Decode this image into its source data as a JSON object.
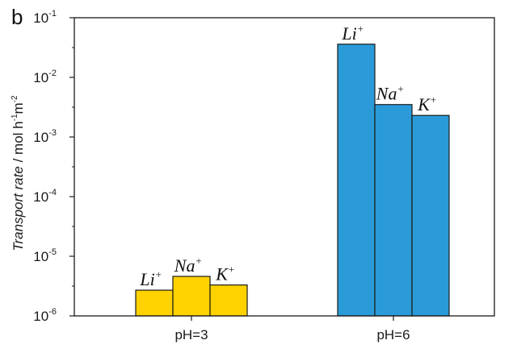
{
  "panel_label": "b",
  "chart_data": {
    "type": "bar",
    "y_scale": "log",
    "ylim": [
      1e-06,
      0.1
    ],
    "ylabel": {
      "italic": "Transport rate",
      "rest": " / mol h",
      "sup1": "-1",
      "mid": "m",
      "sup2": "-2"
    },
    "y_ticks": [
      {
        "value": 1e-06,
        "base": "10",
        "exp": "-6"
      },
      {
        "value": 1e-05,
        "base": "10",
        "exp": "-5"
      },
      {
        "value": 0.0001,
        "base": "10",
        "exp": "-4"
      },
      {
        "value": 0.001,
        "base": "10",
        "exp": "-3"
      },
      {
        "value": 0.01,
        "base": "10",
        "exp": "-2"
      },
      {
        "value": 0.1,
        "base": "10",
        "exp": "-1"
      }
    ],
    "groups": [
      {
        "label": "pH=3",
        "color": "#FFD200",
        "bars": [
          {
            "ion": "Li",
            "charge": "+",
            "value": 2.7e-06
          },
          {
            "ion": "Na",
            "charge": "+",
            "value": 4.6e-06
          },
          {
            "ion": "K",
            "charge": "+",
            "value": 3.3e-06
          }
        ]
      },
      {
        "label": "pH=6",
        "color": "#2A9BD8",
        "bars": [
          {
            "ion": "Li",
            "charge": "+",
            "value": 0.036
          },
          {
            "ion": "Na",
            "charge": "+",
            "value": 0.0035
          },
          {
            "ion": "K",
            "charge": "+",
            "value": 0.0023
          }
        ]
      }
    ],
    "grid": false,
    "legend": "none"
  }
}
